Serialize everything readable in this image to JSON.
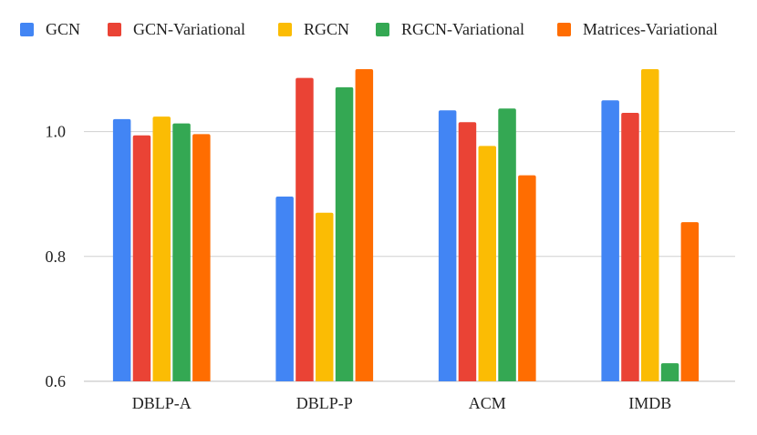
{
  "chart_data": {
    "type": "bar",
    "title": "",
    "xlabel": "",
    "ylabel": "",
    "categories": [
      "DBLP-A",
      "DBLP-P",
      "ACM",
      "IMDB"
    ],
    "ylim": [
      0.6,
      1.1
    ],
    "yticks": [
      0.6,
      0.8,
      1.0
    ],
    "ytick_labels": [
      "0.6",
      "0.8",
      "1.0"
    ],
    "grid": true,
    "legend_position": "top",
    "series": [
      {
        "name": "GCN",
        "color": "#4285F4",
        "values": [
          1.02,
          0.896,
          1.034,
          1.05
        ]
      },
      {
        "name": "GCN-Variational",
        "color": "#EA4335",
        "values": [
          0.994,
          1.086,
          1.015,
          1.03
        ]
      },
      {
        "name": "RGCN",
        "color": "#FBBC04",
        "values": [
          1.024,
          0.87,
          0.977,
          1.1
        ]
      },
      {
        "name": "RGCN-Variational",
        "color": "#34A853",
        "values": [
          1.013,
          1.071,
          1.037,
          0.629
        ]
      },
      {
        "name": "Matrices-Variational",
        "color": "#FF6D01",
        "values": [
          0.996,
          1.1,
          0.93,
          0.855
        ]
      }
    ]
  }
}
